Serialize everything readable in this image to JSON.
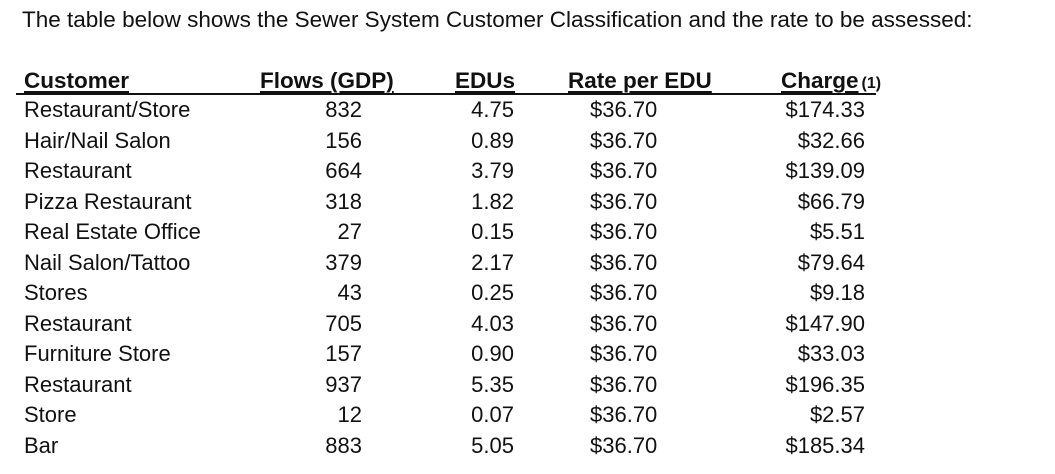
{
  "intro": "The table below shows the Sewer System Customer Classification and the rate to be assessed:",
  "table": {
    "headers": {
      "customer": "Customer",
      "flows": "Flows (GDP)",
      "edus": "EDUs",
      "rate": "Rate per EDU",
      "charge": "Charge",
      "charge_note": "(1)"
    },
    "rows": [
      {
        "customer": "Restaurant/Store",
        "flows": "832",
        "edus": "4.75",
        "rate": "$36.70",
        "charge": "$174.33"
      },
      {
        "customer": "Hair/Nail Salon",
        "flows": "156",
        "edus": "0.89",
        "rate": "$36.70",
        "charge": "$32.66"
      },
      {
        "customer": "Restaurant",
        "flows": "664",
        "edus": "3.79",
        "rate": "$36.70",
        "charge": "$139.09"
      },
      {
        "customer": "Pizza Restaurant",
        "flows": "318",
        "edus": "1.82",
        "rate": "$36.70",
        "charge": "$66.79"
      },
      {
        "customer": "Real Estate Office",
        "flows": "27",
        "edus": "0.15",
        "rate": "$36.70",
        "charge": "$5.51"
      },
      {
        "customer": "Nail Salon/Tattoo",
        "flows": "379",
        "edus": "2.17",
        "rate": "$36.70",
        "charge": "$79.64"
      },
      {
        "customer": "Stores",
        "flows": "43",
        "edus": "0.25",
        "rate": "$36.70",
        "charge": "$9.18"
      },
      {
        "customer": "Restaurant",
        "flows": "705",
        "edus": "4.03",
        "rate": "$36.70",
        "charge": "$147.90"
      },
      {
        "customer": "Furniture Store",
        "flows": "157",
        "edus": "0.90",
        "rate": "$36.70",
        "charge": "$33.03"
      },
      {
        "customer": "Restaurant",
        "flows": "937",
        "edus": "5.35",
        "rate": "$36.70",
        "charge": "$196.35"
      },
      {
        "customer": "Store",
        "flows": "12",
        "edus": "0.07",
        "rate": "$36.70",
        "charge": "$2.57"
      },
      {
        "customer": "Bar",
        "flows": "883",
        "edus": "5.05",
        "rate": "$36.70",
        "charge": "$185.34"
      }
    ]
  }
}
